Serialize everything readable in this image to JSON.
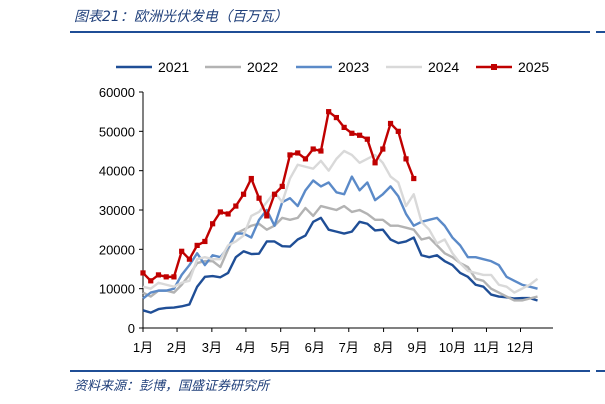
{
  "header": {
    "title": "图表21：欧洲光伏发电（百万瓦）"
  },
  "footer": {
    "source": "资料来源：彭博，国盛证券研究所"
  },
  "chart_data": {
    "type": "line",
    "title": "欧洲光伏发电（百万瓦）",
    "xlabel": "",
    "ylabel": "",
    "ylim": [
      0,
      60000
    ],
    "yticks": [
      "0",
      "10000",
      "20000",
      "30000",
      "40000",
      "50000",
      "60000"
    ],
    "ytick_values": [
      0,
      10000,
      20000,
      30000,
      40000,
      50000,
      60000
    ],
    "xlim": [
      0,
      53
    ],
    "xticks": [
      {
        "label": "1月",
        "x": 0
      },
      {
        "label": "2月",
        "x": 4.4
      },
      {
        "label": "3月",
        "x": 8.9
      },
      {
        "label": "4月",
        "x": 13.3
      },
      {
        "label": "5月",
        "x": 17.8
      },
      {
        "label": "6月",
        "x": 22.2
      },
      {
        "label": "7月",
        "x": 26.6
      },
      {
        "label": "8月",
        "x": 31.1
      },
      {
        "label": "9月",
        "x": 35.5
      },
      {
        "label": "10月",
        "x": 40
      },
      {
        "label": "11月",
        "x": 44.4
      },
      {
        "label": "12月",
        "x": 48.8
      }
    ],
    "legend_position": "top",
    "series": [
      {
        "name": "2021",
        "color": "#1f4e96",
        "marker": false,
        "values": [
          4500,
          3900,
          4800,
          5100,
          5200,
          5500,
          6000,
          10500,
          13000,
          13200,
          12900,
          14000,
          18000,
          19500,
          18800,
          18900,
          22000,
          22000,
          20800,
          20700,
          22500,
          23500,
          27000,
          28000,
          25000,
          24500,
          24000,
          24500,
          27000,
          26500,
          24800,
          25000,
          22500,
          21600,
          22000,
          23000,
          18500,
          18000,
          18500,
          17000,
          16000,
          14000,
          13000,
          11000,
          10500,
          8500,
          8000,
          7800,
          7500,
          7600,
          7600,
          7000
        ]
      },
      {
        "name": "2022",
        "color": "#b3b3b3",
        "marker": false,
        "values": [
          9000,
          8000,
          9500,
          9500,
          9000,
          11000,
          13500,
          16500,
          17000,
          17000,
          15500,
          20000,
          24000,
          25000,
          26000,
          26500,
          25000,
          26000,
          28000,
          27500,
          28000,
          30500,
          28500,
          31000,
          30500,
          30000,
          31000,
          29500,
          30000,
          29000,
          27500,
          27500,
          26000,
          26000,
          25500,
          25000,
          22500,
          23000,
          21000,
          19000,
          18000,
          16500,
          15500,
          12500,
          12000,
          10000,
          9000,
          8000,
          7000,
          7000,
          7500,
          8000
        ]
      },
      {
        "name": "2023",
        "color": "#5b8ac8",
        "marker": false,
        "values": [
          7500,
          9000,
          9500,
          9500,
          10000,
          13500,
          16000,
          19000,
          16000,
          18500,
          18000,
          20500,
          24000,
          24000,
          23000,
          27500,
          30000,
          26000,
          32000,
          33000,
          31000,
          35000,
          37500,
          36000,
          37000,
          34500,
          34000,
          38500,
          35000,
          37000,
          32500,
          34000,
          36000,
          33500,
          29000,
          26000,
          27000,
          27500,
          28000,
          26000,
          23000,
          21000,
          18000,
          18000,
          17500,
          17000,
          16000,
          13000,
          12000,
          11000,
          10500,
          10000
        ]
      },
      {
        "name": "2024",
        "color": "#d9d9d9",
        "marker": false,
        "values": [
          10500,
          10000,
          11500,
          11000,
          10500,
          11500,
          12000,
          17500,
          18000,
          17500,
          17500,
          21000,
          22000,
          23500,
          28500,
          29500,
          32000,
          34500,
          32000,
          38000,
          41500,
          41000,
          40500,
          42500,
          40000,
          43000,
          45000,
          44000,
          42000,
          43000,
          44000,
          42000,
          38500,
          37000,
          31000,
          34000,
          27000,
          25000,
          21500,
          22500,
          19000,
          16500,
          14500,
          14000,
          13500,
          13500,
          11000,
          10500,
          9000,
          10000,
          11000,
          12500
        ]
      },
      {
        "name": "2025",
        "color": "#c00000",
        "marker": true,
        "values": [
          14000,
          12000,
          13500,
          13000,
          13000,
          19500,
          17500,
          21000,
          22000,
          26500,
          29500,
          29000,
          31000,
          34000,
          38000,
          33000,
          28500,
          34000,
          36000,
          44000,
          44500,
          43000,
          45500,
          45000,
          55000,
          53500,
          51000,
          49500,
          49000,
          48000,
          42000,
          45500,
          52000,
          50000,
          43000,
          38000
        ]
      }
    ]
  }
}
